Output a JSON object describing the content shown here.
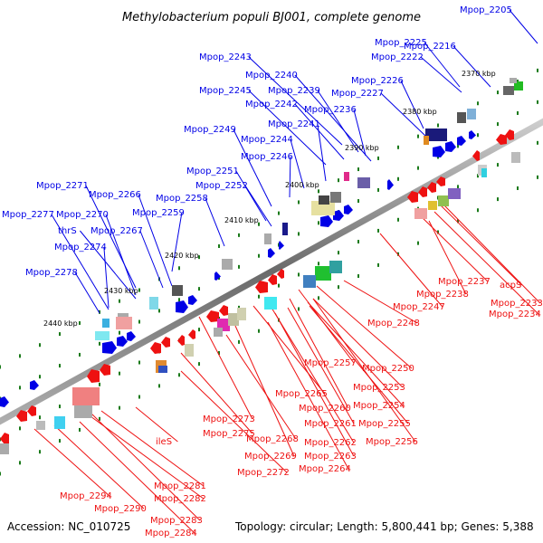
{
  "title": "Methylobacterium populi BJ001, complete genome",
  "footer": {
    "accession": "Accession: NC_010725",
    "summary": "Topology: circular; Length: 5,800,441 bp; Genes: 5,388"
  },
  "colors": {
    "forward_strand": "#0000e6",
    "reverse_strand": "#ee1111",
    "backbone": "#8c8c8c",
    "tick": "#1a7a1a"
  },
  "kbp_marks": [
    "2370 kbp",
    "2380 kbp",
    "2390 kbp",
    "2400 kbp",
    "2410 kbp",
    "2420 kbp",
    "2430 kbp",
    "2440 kbp"
  ],
  "forward_labels": [
    "Mpop_2205",
    "Mpop_2225",
    "Mpop_2216",
    "Mpop_2222",
    "Mpop_2243",
    "Mpop_2240",
    "Mpop_2226",
    "Mpop_2245",
    "Mpop_2242",
    "Mpop_2239",
    "Mpop_2227",
    "Mpop_2236",
    "Mpop_2241",
    "Mpop_2249",
    "Mpop_2244",
    "Mpop_2246",
    "Mpop_2251",
    "Mpop_2252",
    "Mpop_2271",
    "Mpop_2266",
    "Mpop_2258",
    "Mpop_2277",
    "Mpop_2270",
    "Mpop_2259",
    "thrS",
    "Mpop_2267",
    "Mpop_2274",
    "Mpop_2278"
  ],
  "reverse_labels": [
    "acpS",
    "Mpop_2237",
    "Mpop_2233",
    "Mpop_2238",
    "Mpop_2234",
    "Mpop_2247",
    "Mpop_2248",
    "Mpop_2257",
    "Mpop_2250",
    "Mpop_2253",
    "Mpop_2265",
    "Mpop_2260",
    "Mpop_2254",
    "Mpop_2261",
    "Mpop_2255",
    "Mpop_2273",
    "Mpop_2262",
    "Mpop_2256",
    "Mpop_2275",
    "Mpop_2268",
    "Mpop_2263",
    "ileS",
    "Mpop_2269",
    "Mpop_2264",
    "Mpop_2272",
    "Mpop_2281",
    "Mpop_2282",
    "Mpop_2294",
    "Mpop_2290",
    "Mpop_2283",
    "Mpop_2284"
  ]
}
